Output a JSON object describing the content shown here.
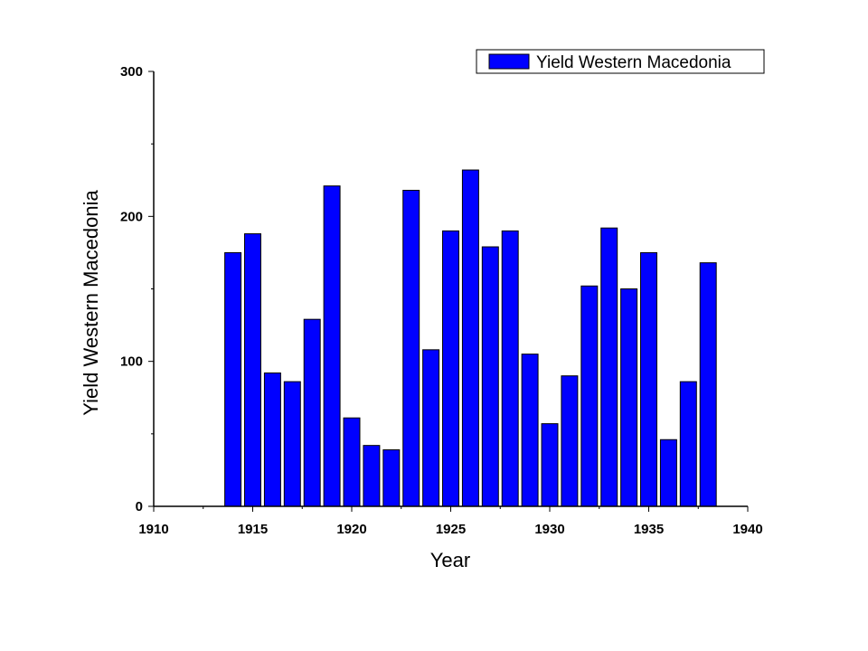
{
  "chart_data": {
    "type": "bar",
    "title": "",
    "xlabel": "Year",
    "ylabel": "Yield Western Macedonia",
    "xlim": [
      1910,
      1940
    ],
    "ylim": [
      0,
      300
    ],
    "x_ticks": [
      "1910",
      "1915",
      "1920",
      "1925",
      "1930",
      "1935",
      "1940"
    ],
    "y_ticks": [
      "0",
      "100",
      "200",
      "300"
    ],
    "grid": false,
    "legend_position": "top-right",
    "series": [
      {
        "name": "Yield Western Macedonia",
        "color": "#0000ff",
        "x": [
          1914,
          1915,
          1916,
          1917,
          1918,
          1919,
          1920,
          1921,
          1922,
          1923,
          1924,
          1925,
          1926,
          1927,
          1928,
          1929,
          1930,
          1931,
          1932,
          1933,
          1934,
          1935,
          1936,
          1937,
          1938
        ],
        "values": [
          175,
          188,
          92,
          86,
          129,
          221,
          61,
          42,
          39,
          218,
          108,
          190,
          232,
          179,
          190,
          105,
          57,
          90,
          152,
          192,
          150,
          175,
          46,
          86,
          168
        ]
      }
    ]
  }
}
